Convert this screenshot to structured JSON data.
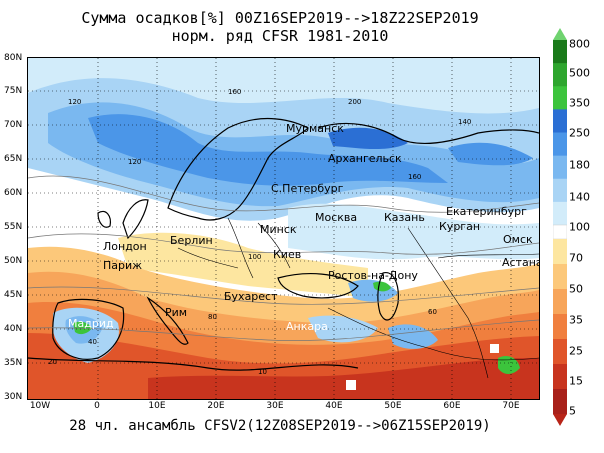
{
  "title_line1": "Сумма осадков[%] 00Z16SEP2019-->18Z22SEP2019",
  "title_line2": "норм. ряд CFSR 1981-2010",
  "footer": "28 чл. ансамбль CFSV2(12Z08SEP2019-->06Z15SEP2019)",
  "lat_labels": [
    "80N",
    "75N",
    "70N",
    "65N",
    "60N",
    "55N",
    "50N",
    "45N",
    "40N",
    "35N",
    "30N"
  ],
  "lon_labels": [
    "10W",
    "0",
    "10E",
    "20E",
    "30E",
    "40E",
    "50E",
    "60E",
    "70E"
  ],
  "cities": [
    "Мурманск",
    "Архангельск",
    "С.Петербург",
    "Москва",
    "Казань",
    "Екатеринбург",
    "Курган",
    "Омск",
    "Минск",
    "Берлин",
    "Киев",
    "Ростов-на-Дону",
    "Астана",
    "Лондон",
    "Париж",
    "Бухарест",
    "Мадрид",
    "Рим",
    "Анкара"
  ],
  "contour_labels": [
    "120",
    "160",
    "200",
    "140",
    "80",
    "100",
    "40",
    "20",
    "10",
    "60"
  ],
  "colorbar": {
    "upper_labels": [
      "800",
      "500",
      "350",
      "250",
      "180",
      "140"
    ],
    "middle_label": "100",
    "lower_labels": [
      "70",
      "50",
      "35",
      "25",
      "15",
      "5"
    ],
    "upper_colors": [
      "#1a7a1a",
      "#2ea62e",
      "#3cc43c",
      "#2b6fd4",
      "#4b96e8",
      "#7ab8f0",
      "#a9d4f5",
      "#d2ecfa"
    ],
    "lower_colors": [
      "#fde6a0",
      "#fcc87a",
      "#f7a55a",
      "#f07f3e",
      "#e0552a",
      "#c8341e",
      "#a8201a"
    ],
    "top_arrow_color": "#6fd36f",
    "bottom_arrow_color": "#b82418"
  }
}
